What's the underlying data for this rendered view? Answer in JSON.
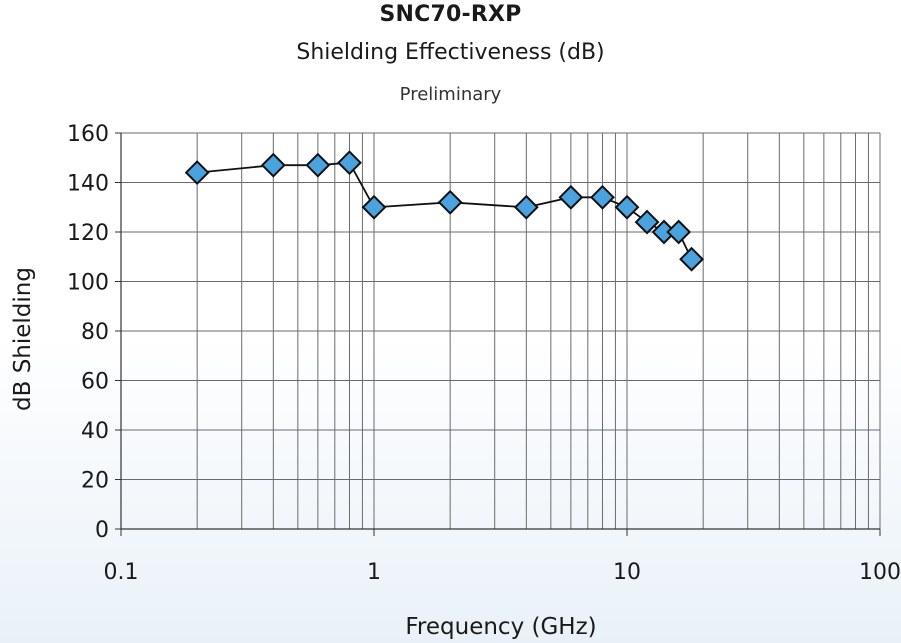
{
  "chart_data": {
    "type": "scatter",
    "title": "SNC70-RXP",
    "subtitle": "Shielding Effectiveness (dB)",
    "note": "Preliminary",
    "xlabel": "Frequency (GHz)",
    "ylabel": "dB Shielding",
    "xscale": "log",
    "xlim": [
      0.1,
      100
    ],
    "ylim": [
      0,
      160
    ],
    "xticks": [
      "0.1",
      "1",
      "10",
      "100"
    ],
    "yticks": [
      "0",
      "20",
      "40",
      "60",
      "80",
      "100",
      "120",
      "140",
      "160"
    ],
    "grid": true,
    "series": [
      {
        "name": "SNC70-RXP",
        "marker": "diamond",
        "line": true,
        "color": "#4aa3df",
        "x": [
          0.2,
          0.4,
          0.6,
          0.8,
          1,
          2,
          4,
          6,
          8,
          10,
          12,
          14,
          16,
          18
        ],
        "y": [
          144,
          147,
          147,
          148,
          130,
          132,
          130,
          134,
          134,
          130,
          124,
          120,
          120,
          109
        ]
      }
    ]
  }
}
